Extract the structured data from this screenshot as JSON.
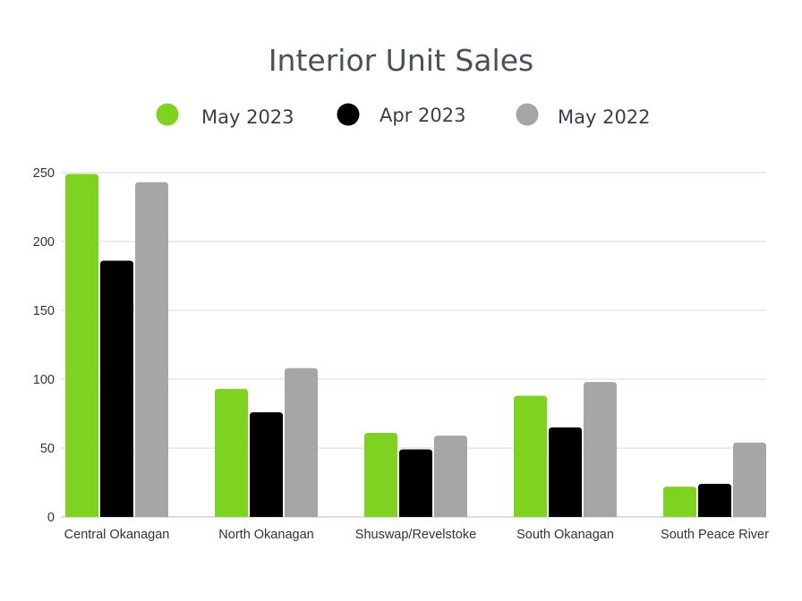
{
  "chart_data": {
    "type": "bar",
    "title": "Interior Unit Sales",
    "categories": [
      "Central Okanagan",
      "North Okanagan",
      "Shuswap/Revelstoke",
      "South Okanagan",
      "South Peace River"
    ],
    "series": [
      {
        "name": "May 2023",
        "color": "#7ed321",
        "values": [
          249,
          93,
          61,
          88,
          22
        ]
      },
      {
        "name": "Apr 2023",
        "color": "#000000",
        "values": [
          186,
          76,
          49,
          65,
          24
        ]
      },
      {
        "name": "May 2022",
        "color": "#a6a6a6",
        "values": [
          243,
          108,
          59,
          98,
          54
        ]
      }
    ],
    "ylim": [
      0,
      250
    ],
    "yticks": [
      0,
      50,
      100,
      150,
      200,
      250
    ],
    "grid": true,
    "legend_position": "top-center"
  }
}
